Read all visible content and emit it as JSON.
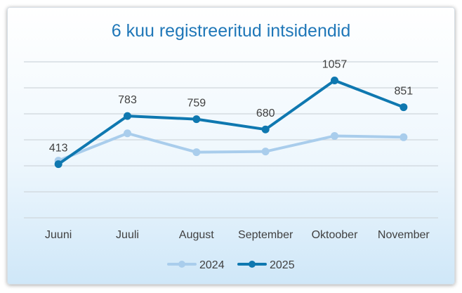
{
  "chart_data": {
    "type": "line",
    "title": "6 kuu registreeritud intsidendid",
    "xlabel": "",
    "ylabel": "",
    "categories": [
      "Juuni",
      "Juuli",
      "August",
      "September",
      "Oktoober",
      "November"
    ],
    "series": [
      {
        "name": "2024",
        "values": [
          440,
          650,
          505,
          510,
          630,
          620
        ],
        "color": "#a9cdec",
        "show_labels": false
      },
      {
        "name": "2025",
        "values": [
          413,
          783,
          759,
          680,
          1057,
          851
        ],
        "color": "#0f78b0",
        "show_labels": true
      }
    ],
    "ylim": [
      0,
      1200
    ],
    "gridlines": [
      0,
      200,
      400,
      600,
      800,
      1000,
      1200
    ],
    "grid": true,
    "legend": "bottom"
  }
}
